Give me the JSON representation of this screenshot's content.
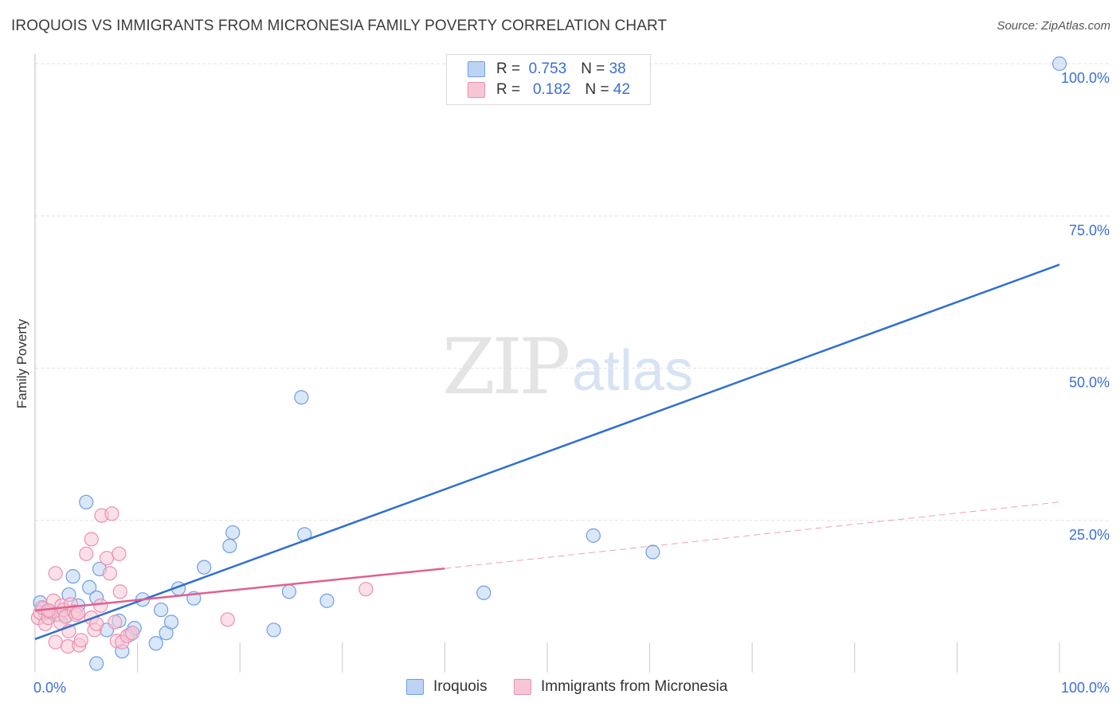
{
  "title": "IROQUOIS VS IMMIGRANTS FROM MICRONESIA FAMILY POVERTY CORRELATION CHART",
  "source": "Source: ZipAtlas.com",
  "watermark": {
    "zip": "ZIP",
    "atlas": "atlas"
  },
  "colors": {
    "blue": "#6d9ee8",
    "blue_fill": "#bcd3f3",
    "pink": "#ec8fae",
    "pink_fill": "#f7c6d5",
    "blue_line": "#2f6fd0",
    "pink_line": "#e0608f",
    "tick_label": "#3a6fd8"
  },
  "legend": {
    "blue": {
      "r_label": "R =",
      "r_value": "0.753",
      "n_label": "N =",
      "n_value": "38"
    },
    "pink": {
      "r_label": "R =",
      "r_value": "0.182",
      "n_label": "N =",
      "n_value": "42"
    }
  },
  "bottom_legend": {
    "iroquois": "Iroquois",
    "micronesia": "Immigrants from Micronesia"
  },
  "chart_data": {
    "type": "scatter",
    "xlabel": "",
    "ylabel": "Family Poverty",
    "xlim": [
      0,
      100
    ],
    "ylim": [
      0,
      100
    ],
    "x_tick_labels": {
      "left": "0.0%",
      "right": "100.0%"
    },
    "y_ticks": [
      {
        "value": 25,
        "label": "25.0%"
      },
      {
        "value": 50,
        "label": "50.0%"
      },
      {
        "value": 75,
        "label": "75.0%"
      },
      {
        "value": 100,
        "label": "100.0%"
      }
    ],
    "series": [
      {
        "name": "Iroquois",
        "points": [
          [
            0.5,
            11.5
          ],
          [
            0.8,
            10.5
          ],
          [
            1.0,
            9.8
          ],
          [
            1.5,
            10.0
          ],
          [
            2.0,
            9.5
          ],
          [
            3.0,
            9.3
          ],
          [
            3.3,
            12.8
          ],
          [
            3.7,
            15.8
          ],
          [
            4.2,
            11.0
          ],
          [
            5.0,
            28.0
          ],
          [
            5.3,
            14.0
          ],
          [
            6.0,
            12.3
          ],
          [
            6.3,
            17.0
          ],
          [
            7.0,
            7.0
          ],
          [
            8.2,
            8.5
          ],
          [
            8.5,
            3.5
          ],
          [
            9.3,
            6.3
          ],
          [
            9.7,
            7.3
          ],
          [
            10.5,
            12.0
          ],
          [
            11.8,
            4.8
          ],
          [
            12.3,
            10.3
          ],
          [
            12.8,
            6.5
          ],
          [
            13.3,
            8.3
          ],
          [
            14.0,
            13.8
          ],
          [
            15.5,
            12.2
          ],
          [
            16.5,
            17.3
          ],
          [
            19.0,
            20.8
          ],
          [
            19.3,
            23.0
          ],
          [
            23.3,
            7.0
          ],
          [
            24.8,
            13.3
          ],
          [
            26.0,
            45.2
          ],
          [
            26.3,
            22.7
          ],
          [
            28.5,
            11.8
          ],
          [
            6.0,
            1.5
          ],
          [
            43.8,
            13.1
          ],
          [
            54.5,
            22.5
          ],
          [
            60.3,
            19.8
          ],
          [
            100.0,
            100.0
          ]
        ]
      },
      {
        "name": "Immigrants from Micronesia",
        "points": [
          [
            0.3,
            9.0
          ],
          [
            0.5,
            9.8
          ],
          [
            0.7,
            10.7
          ],
          [
            1.0,
            8.0
          ],
          [
            1.3,
            9.0
          ],
          [
            1.5,
            10.0
          ],
          [
            1.8,
            11.8
          ],
          [
            2.0,
            5.0
          ],
          [
            2.0,
            16.3
          ],
          [
            2.3,
            9.5
          ],
          [
            2.5,
            8.2
          ],
          [
            2.6,
            11.0
          ],
          [
            2.8,
            10.3
          ],
          [
            3.0,
            9.2
          ],
          [
            3.2,
            4.3
          ],
          [
            3.3,
            6.8
          ],
          [
            3.5,
            11.2
          ],
          [
            3.8,
            10.0
          ],
          [
            4.0,
            9.5
          ],
          [
            4.2,
            9.8
          ],
          [
            4.3,
            4.5
          ],
          [
            4.5,
            5.3
          ],
          [
            5.0,
            19.5
          ],
          [
            5.5,
            21.9
          ],
          [
            5.5,
            9.0
          ],
          [
            5.8,
            7.0
          ],
          [
            6.0,
            8.0
          ],
          [
            6.4,
            11.0
          ],
          [
            6.5,
            25.8
          ],
          [
            7.0,
            18.8
          ],
          [
            7.3,
            16.3
          ],
          [
            7.5,
            26.1
          ],
          [
            7.8,
            8.3
          ],
          [
            8.0,
            5.2
          ],
          [
            8.2,
            19.5
          ],
          [
            8.3,
            13.3
          ],
          [
            8.5,
            5.0
          ],
          [
            9.0,
            6.0
          ],
          [
            9.5,
            6.5
          ],
          [
            18.8,
            8.7
          ],
          [
            32.3,
            13.7
          ],
          [
            1.3,
            10.2
          ]
        ]
      }
    ],
    "trend_lines": [
      {
        "series": "Iroquois",
        "from": [
          0,
          5.5
        ],
        "to": [
          100,
          67.0
        ],
        "style": "solid"
      },
      {
        "series": "Immigrants from Micronesia",
        "from": [
          0,
          10.2
        ],
        "to": [
          40,
          17.1
        ],
        "style": "solid"
      },
      {
        "series": "Immigrants from Micronesia",
        "from": [
          40,
          17.1
        ],
        "to": [
          100,
          28.0
        ],
        "style": "dashed"
      }
    ]
  }
}
